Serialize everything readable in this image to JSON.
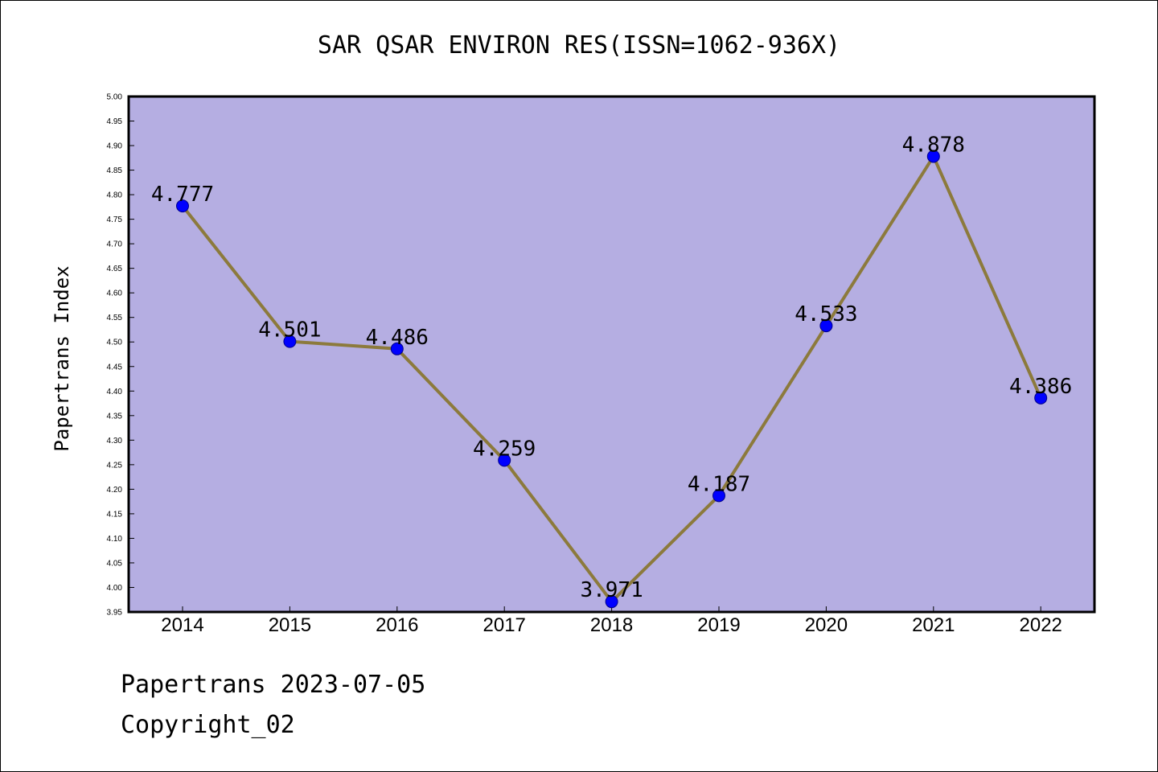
{
  "chart_data": {
    "type": "line",
    "title": "SAR QSAR ENVIRON RES(ISSN=1062-936X)",
    "xlabel": "",
    "ylabel": "Papertrans Index",
    "categories": [
      "2014",
      "2015",
      "2016",
      "2017",
      "2018",
      "2019",
      "2020",
      "2021",
      "2022"
    ],
    "values": [
      4.777,
      4.501,
      4.486,
      4.259,
      3.971,
      4.187,
      4.533,
      4.878,
      4.386
    ],
    "value_labels": [
      "4.777",
      "4.501",
      "4.486",
      "4.259",
      "3.971",
      "4.187",
      "4.533",
      "4.878",
      "4.386"
    ],
    "ylim": [
      3.95,
      5.0
    ],
    "yticks": [
      "3.95",
      "4.00",
      "4.05",
      "4.10",
      "4.15",
      "4.20",
      "4.25",
      "4.30",
      "4.35",
      "4.40",
      "4.45",
      "4.50",
      "4.55",
      "4.60",
      "4.65",
      "4.70",
      "4.75",
      "4.80",
      "4.85",
      "4.90",
      "4.95",
      "5.00"
    ],
    "grid": false,
    "legend": "none",
    "colors": {
      "plot_background": "#b5aee2",
      "line": "#8c7a3c",
      "marker": "#0000ff",
      "marker_edge": "#00008b"
    }
  },
  "footer": {
    "line1": "Papertrans 2023-07-05",
    "line2": "Copyright_02"
  }
}
